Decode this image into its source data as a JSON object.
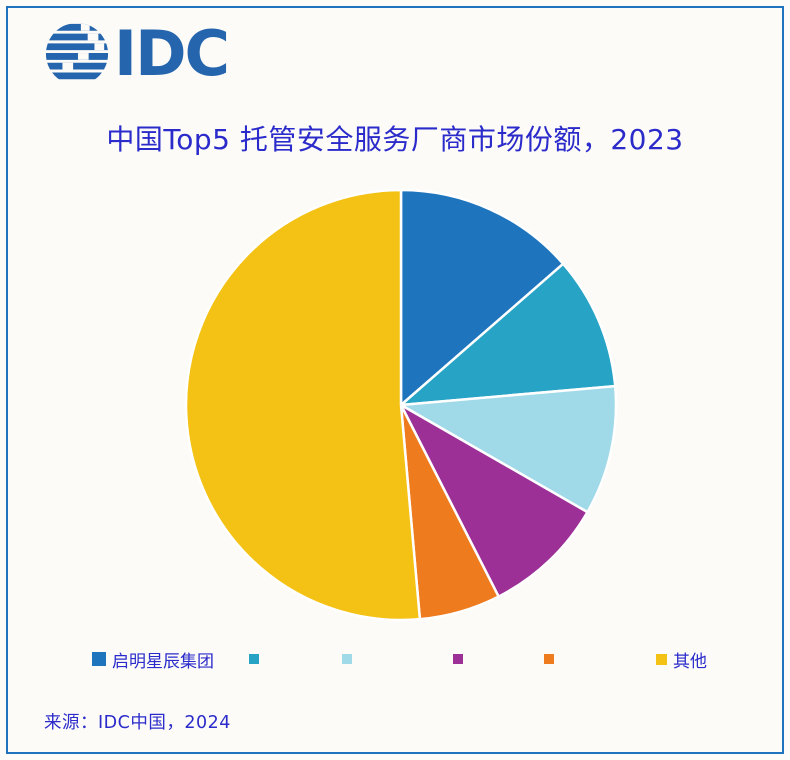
{
  "theme": {
    "text_color": "#2b2bcb",
    "logo_color": "#2465ad",
    "border_color": "#1f73be",
    "background": "#fcfbf7",
    "slice_stroke": "#ffffff"
  },
  "logo": {
    "text": "IDC",
    "icon": "idc-globe-icon"
  },
  "chart_data": {
    "type": "pie",
    "title": "中国Top5 托管安全服务厂商市场份额，2023",
    "start_angle_deg": 0,
    "direction": "clockwise",
    "legend_position": "bottom",
    "slices": [
      {
        "label": "启明星辰集团",
        "value_pct": 13.6,
        "color": "#1e74bd"
      },
      {
        "label": "",
        "value_pct": 10.0,
        "color": "#26a3c5"
      },
      {
        "label": "",
        "value_pct": 9.7,
        "color": "#a0d9e8"
      },
      {
        "label": "",
        "value_pct": 9.2,
        "color": "#9c3097"
      },
      {
        "label": "",
        "value_pct": 6.1,
        "color": "#ee7c1e"
      },
      {
        "label": "其他",
        "value_pct": 51.4,
        "color": "#f4c214"
      }
    ]
  },
  "source": {
    "text": "来源：IDC中国，2024"
  }
}
